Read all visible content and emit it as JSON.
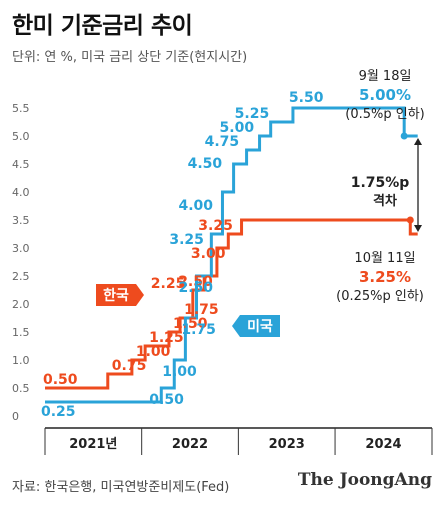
{
  "header": {
    "title": "한미 기준금리 추이",
    "subtitle": "단위: 연 %, 미국 금리 상단 기준(현지시간)"
  },
  "footer": {
    "source": "자료: 한국은행, 미국연방준비제도(Fed)",
    "brand": "The JoongAng"
  },
  "chart_data": {
    "type": "line",
    "step": true,
    "x_axis": {
      "labels": [
        "2021년",
        "2022",
        "2023",
        "2024"
      ]
    },
    "y_axis": {
      "ticks": [
        "0",
        "0.5",
        "1.0",
        "1.5",
        "2.0",
        "2.5",
        "3.0",
        "3.5",
        "4.0",
        "4.5",
        "5.0",
        "5.5"
      ],
      "ylim": [
        0,
        5.5
      ]
    },
    "series": [
      {
        "name": "한국",
        "color": "#ee4b1e",
        "points": [
          {
            "x": "2021-01-01",
            "y": 0.5
          },
          {
            "x": "2021-08-26",
            "y": 0.75
          },
          {
            "x": "2021-11-25",
            "y": 1.0
          },
          {
            "x": "2022-01-14",
            "y": 1.25
          },
          {
            "x": "2022-04-14",
            "y": 1.5
          },
          {
            "x": "2022-05-26",
            "y": 1.75
          },
          {
            "x": "2022-07-13",
            "y": 2.25
          },
          {
            "x": "2022-08-25",
            "y": 2.5
          },
          {
            "x": "2022-10-12",
            "y": 3.0
          },
          {
            "x": "2022-11-24",
            "y": 3.25
          },
          {
            "x": "2023-01-13",
            "y": 3.5
          },
          {
            "x": "2024-10-11",
            "y": 3.25
          }
        ],
        "labels": [
          "0.50",
          "0.75",
          "1.00",
          "1.25",
          "1.50",
          "1.75",
          "2.25",
          "2.50",
          "3.00",
          "3.25"
        ]
      },
      {
        "name": "미국",
        "color": "#2aa3d8",
        "points": [
          {
            "x": "2021-01-01",
            "y": 0.25
          },
          {
            "x": "2022-03-16",
            "y": 0.5
          },
          {
            "x": "2022-05-04",
            "y": 1.0
          },
          {
            "x": "2022-06-15",
            "y": 1.75
          },
          {
            "x": "2022-07-27",
            "y": 2.5
          },
          {
            "x": "2022-09-21",
            "y": 3.25
          },
          {
            "x": "2022-11-02",
            "y": 4.0
          },
          {
            "x": "2022-12-14",
            "y": 4.5
          },
          {
            "x": "2023-02-01",
            "y": 4.75
          },
          {
            "x": "2023-03-22",
            "y": 5.0
          },
          {
            "x": "2023-05-03",
            "y": 5.25
          },
          {
            "x": "2023-07-26",
            "y": 5.5
          },
          {
            "x": "2024-09-18",
            "y": 5.0
          }
        ],
        "labels": [
          "0.25",
          "0.50",
          "1.00",
          "1.75",
          "2.50",
          "3.25",
          "4.00",
          "4.50",
          "4.75",
          "5.00",
          "5.25",
          "5.50"
        ]
      }
    ],
    "annotations": {
      "us_cut": {
        "date": "9월 18일",
        "value": "5.00%",
        "note": "(0.5%p 인하)"
      },
      "kr_cut": {
        "date": "10월 11일",
        "value": "3.25%",
        "note": "(0.25%p 인하)"
      },
      "gap": {
        "value": "1.75%p",
        "label": "격차"
      }
    }
  }
}
